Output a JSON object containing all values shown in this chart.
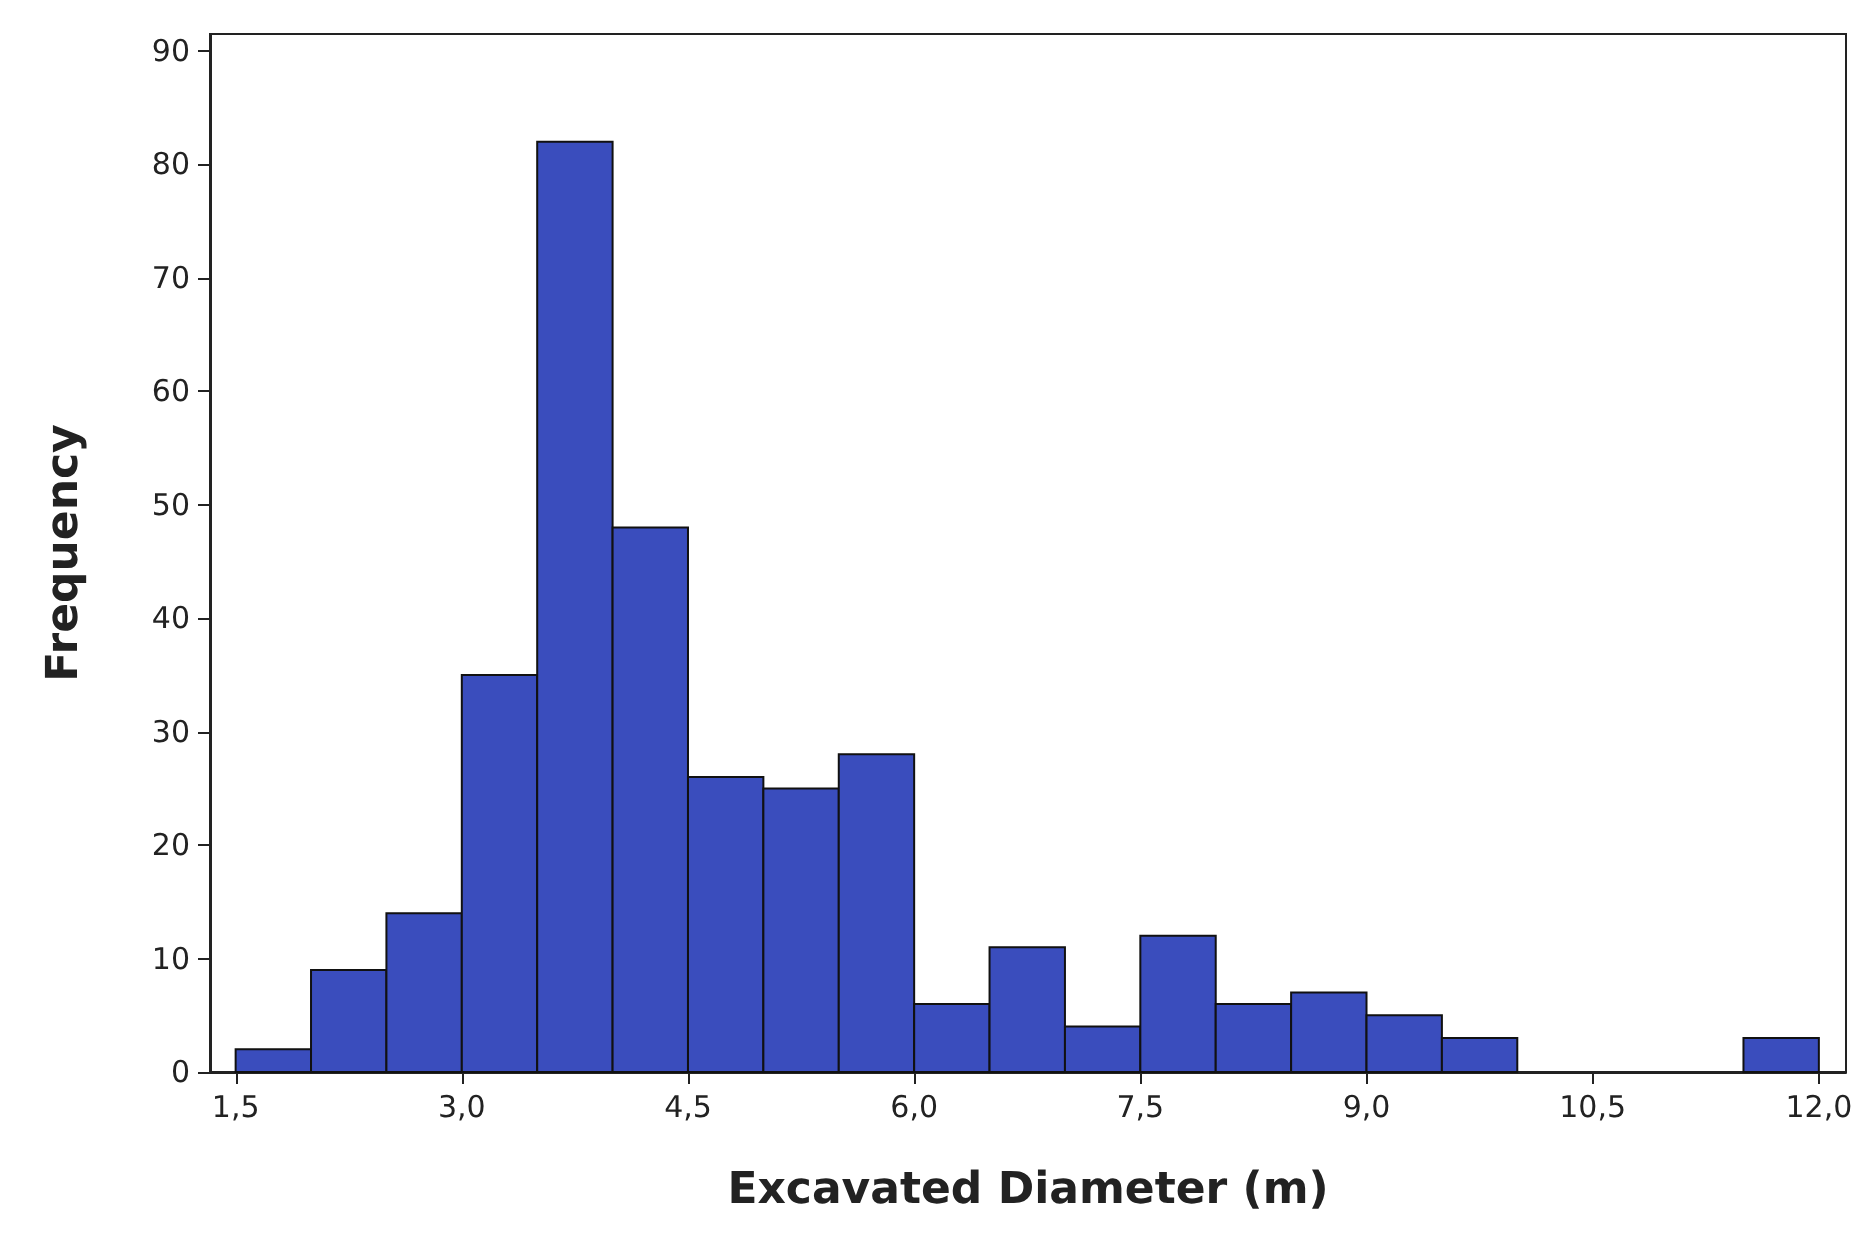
{
  "chart_data": {
    "type": "histogram",
    "xlabel": "Excavated Diameter (m)",
    "ylabel": "Frequency",
    "color": "#3a4dbd",
    "bins": [
      1.5,
      2.0,
      2.5,
      3.0,
      3.5,
      4.0,
      4.5,
      5.0,
      5.5,
      6.0,
      6.5,
      7.0,
      7.5,
      8.0,
      8.5,
      9.0,
      9.5,
      10.0,
      10.5,
      11.0,
      11.5,
      12.0
    ],
    "values": [
      2,
      9,
      14,
      35,
      82,
      48,
      26,
      25,
      28,
      6,
      11,
      4,
      12,
      6,
      7,
      5,
      3,
      0,
      0,
      0,
      3
    ],
    "xlim": [
      1.33,
      12.18
    ],
    "ylim": [
      0,
      91.5
    ],
    "xticks": [
      {
        "value": 1.5,
        "label": "1,5"
      },
      {
        "value": 3.0,
        "label": "3,0"
      },
      {
        "value": 4.5,
        "label": "4,5"
      },
      {
        "value": 6.0,
        "label": "6,0"
      },
      {
        "value": 7.5,
        "label": "7,5"
      },
      {
        "value": 9.0,
        "label": "9,0"
      },
      {
        "value": 10.5,
        "label": "10,5"
      },
      {
        "value": 12.0,
        "label": "12,0"
      }
    ],
    "yticks": [
      0,
      10,
      20,
      30,
      40,
      50,
      60,
      70,
      80,
      90
    ],
    "grid": false
  }
}
